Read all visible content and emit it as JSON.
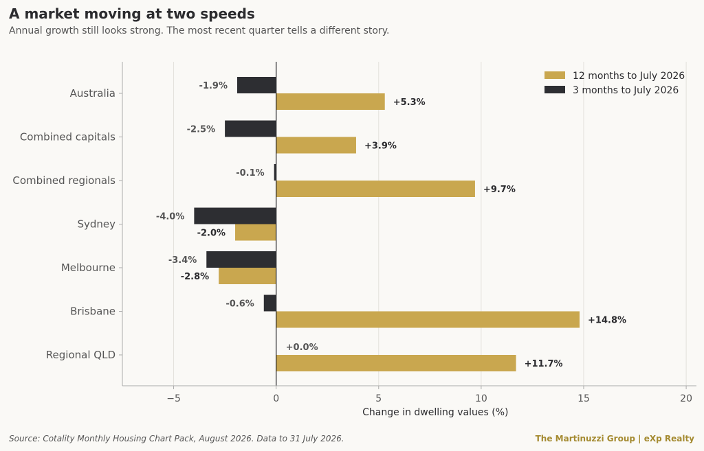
{
  "title": "A market moving at two speeds",
  "subtitle": "Annual growth still looks strong. The most recent quarter tells a different story.",
  "source": "Source: Cotality Monthly Housing Chart Pack, August 2026. Data to 31 July 2026.",
  "brand": "The Martinuzzi Group  |  eXp Realty",
  "colors": {
    "series_12m": "#c9a74f",
    "series_3m": "#2d2e32",
    "grid": "#e3e1dc",
    "axis": "#aaaaaa",
    "zero_line": "#2b2b2e"
  },
  "chart_data": {
    "type": "bar",
    "orientation": "horizontal",
    "categories": [
      "Australia",
      "Combined capitals",
      "Combined regionals",
      "Sydney",
      "Melbourne",
      "Brisbane",
      "Regional QLD"
    ],
    "series": [
      {
        "name": "12 months to July 2026",
        "values": [
          5.3,
          3.9,
          9.7,
          -2.0,
          -2.8,
          14.8,
          11.7
        ],
        "labels": [
          "+5.3%",
          "+3.9%",
          "+9.7%",
          "-2.0%",
          "-2.8%",
          "+14.8%",
          "+11.7%"
        ]
      },
      {
        "name": "3 months to July 2026",
        "values": [
          -1.9,
          -2.5,
          -0.1,
          -4.0,
          -3.4,
          -0.6,
          0.0
        ],
        "labels": [
          "-1.9%",
          "-2.5%",
          "-0.1%",
          "-4.0%",
          "-3.4%",
          "-0.6%",
          "+0.0%"
        ]
      }
    ],
    "xlabel": "Change in dwelling values (%)",
    "xlim": [
      -7.5,
      20.5
    ],
    "xticks": [
      -5,
      0,
      5,
      10,
      15,
      20
    ],
    "xtick_labels": [
      "−5",
      "0",
      "5",
      "10",
      "15",
      "20"
    ],
    "grid": "vertical",
    "legend_position": "top-right"
  }
}
